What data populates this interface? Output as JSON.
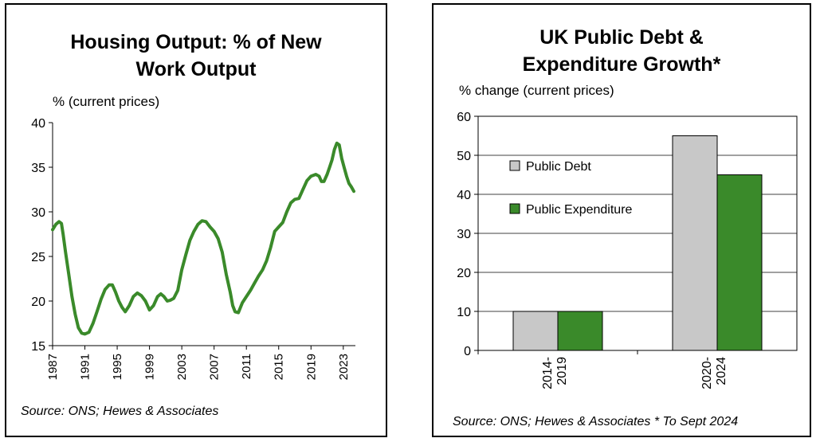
{
  "charts": {
    "housing": {
      "title_line1": "Housing Output: % of New",
      "title_line2": "Work Output",
      "unit_label": "% (current prices)",
      "source": "Source: ONS; Hewes & Associates"
    },
    "debt": {
      "title_line1": "UK Public Debt &",
      "title_line2": "Expenditure Growth*",
      "unit_label": "% change (current prices)",
      "source": "Source: ONS; Hewes & Associates * To Sept 2024"
    }
  },
  "colors": {
    "green": "#3a8a2a",
    "grey": "#c8c8c8",
    "axis": "#000000",
    "grid": "#000000"
  },
  "chart_data": [
    {
      "type": "line",
      "title": "Housing Output: % of New Work Output",
      "ylabel": "% (current prices)",
      "ylim": [
        15,
        40
      ],
      "yticks": [
        15,
        20,
        25,
        30,
        35,
        40
      ],
      "xlim": [
        1987,
        2024.5
      ],
      "xticks": [
        "1987",
        "1991",
        "1995",
        "1999",
        "2003",
        "2007",
        "2011",
        "2015",
        "2019",
        "2023"
      ],
      "grid": false,
      "series": [
        {
          "color": "#3a8a2a",
          "x": [
            1987,
            1987.4,
            1987.8,
            1988.1,
            1988.3,
            1988.6,
            1989.0,
            1989.4,
            1989.8,
            1990.2,
            1990.6,
            1991.0,
            1991.5,
            1992.0,
            1992.5,
            1993.0,
            1993.5,
            1994.0,
            1994.4,
            1994.8,
            1995.2,
            1995.6,
            1996.0,
            1996.5,
            1997.0,
            1997.5,
            1998.0,
            1998.5,
            1999.0,
            1999.5,
            2000.0,
            2000.4,
            2000.8,
            2001.2,
            2001.6,
            2002.0,
            2002.5,
            2003.0,
            2003.5,
            2004.0,
            2004.5,
            2005.0,
            2005.5,
            2006.0,
            2006.5,
            2007.0,
            2007.5,
            2008.0,
            2008.5,
            2009.0,
            2009.3,
            2009.6,
            2010.0,
            2010.5,
            2011.0,
            2011.5,
            2012.0,
            2012.5,
            2013.0,
            2013.5,
            2014.0,
            2014.5,
            2015.0,
            2015.5,
            2016.0,
            2016.5,
            2017.0,
            2017.5,
            2018.0,
            2018.5,
            2019.0,
            2019.3,
            2019.6,
            2020.0,
            2020.3,
            2020.6,
            2021.0,
            2021.3,
            2021.6,
            2021.9,
            2022.2,
            2022.5,
            2022.8,
            2023.1,
            2023.4,
            2023.7,
            2024.0,
            2024.3
          ],
          "y": [
            28.0,
            28.6,
            28.9,
            28.7,
            27.5,
            25.5,
            23.0,
            20.5,
            18.5,
            17.0,
            16.4,
            16.3,
            16.5,
            17.5,
            18.8,
            20.2,
            21.3,
            21.8,
            21.8,
            21.0,
            20.0,
            19.3,
            18.8,
            19.5,
            20.5,
            20.9,
            20.6,
            20.0,
            19.0,
            19.5,
            20.5,
            20.8,
            20.5,
            20.0,
            20.1,
            20.3,
            21.2,
            23.5,
            25.2,
            26.8,
            27.8,
            28.6,
            29.0,
            28.9,
            28.3,
            27.8,
            27.0,
            25.5,
            23.0,
            21.0,
            19.5,
            18.8,
            18.7,
            19.8,
            20.5,
            21.2,
            22.0,
            22.8,
            23.5,
            24.5,
            26.0,
            27.8,
            28.3,
            28.8,
            30.0,
            31.0,
            31.4,
            31.5,
            32.5,
            33.5,
            34.0,
            34.1,
            34.2,
            34.0,
            33.4,
            33.4,
            34.2,
            35.0,
            35.8,
            37.0,
            37.7,
            37.5,
            36.0,
            35.0,
            34.0,
            33.2,
            32.8,
            32.3
          ]
        }
      ]
    },
    {
      "type": "bar",
      "title": "UK Public Debt & Expenditure Growth*",
      "ylabel": "% change (current prices)",
      "ylim": [
        0,
        60
      ],
      "yticks": [
        0,
        10,
        20,
        30,
        40,
        50,
        60
      ],
      "categories": [
        "2014-\n2019",
        "2020-\n2024"
      ],
      "category_lines": [
        [
          "2014-",
          "2019"
        ],
        [
          "2020-",
          "2024"
        ]
      ],
      "legend_position": "left",
      "grid": true,
      "series": [
        {
          "name": "Public Debt",
          "color": "#c8c8c8",
          "values": [
            10,
            55
          ]
        },
        {
          "name": "Public Expenditure",
          "color": "#3a8a2a",
          "values": [
            10,
            45
          ]
        }
      ]
    }
  ]
}
